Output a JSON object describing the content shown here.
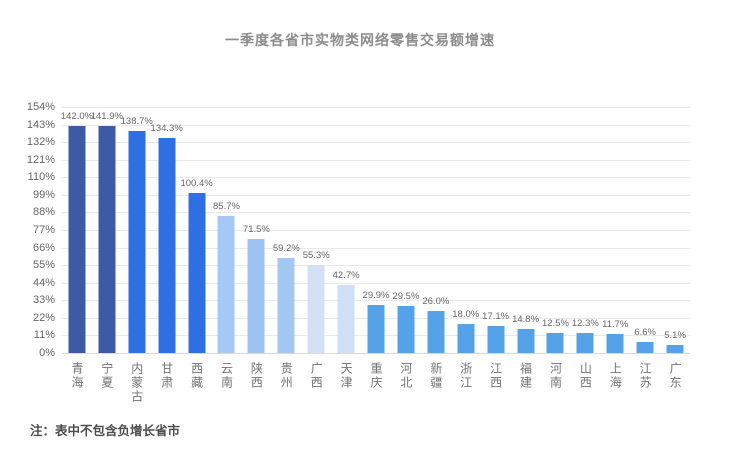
{
  "chart_data": {
    "type": "bar",
    "title": "一季度各省市实物类网络零售交易额增速",
    "footnote": "注：表中不包含负增长省市",
    "categories": [
      "青海",
      "宁夏",
      "内蒙古",
      "甘肃",
      "西藏",
      "云南",
      "陕西",
      "贵州",
      "广西",
      "天津",
      "重庆",
      "河北",
      "新疆",
      "浙江",
      "江西",
      "福建",
      "河南",
      "山西",
      "上海",
      "江苏",
      "广东"
    ],
    "values": [
      142.0,
      141.9,
      138.7,
      134.3,
      100.4,
      85.7,
      71.5,
      59.2,
      55.3,
      42.7,
      29.9,
      29.5,
      26.0,
      18.0,
      17.1,
      14.8,
      12.5,
      12.3,
      11.7,
      6.6,
      5.1
    ],
    "value_labels": [
      "142.0%",
      "141.9%",
      "138.7%",
      "134.3%",
      "100.4%",
      "85.7%",
      "71.5%",
      "59.2%",
      "55.3%",
      "42.7%",
      "29.9%",
      "29.5%",
      "26.0%",
      "18.0%",
      "17.1%",
      "14.8%",
      "12.5%",
      "12.3%",
      "11.7%",
      "6.6%",
      "5.1%"
    ],
    "bar_colors": [
      "#3d5ba4",
      "#3d5ba4",
      "#2f6fe4",
      "#2f6fe4",
      "#2f6fe4",
      "#a6c8f4",
      "#9dc3f2",
      "#a3c6f3",
      "#d2e1f8",
      "#cfdff8",
      "#55a2e8",
      "#55a2e8",
      "#55a2e8",
      "#55a2e8",
      "#55a2e8",
      "#55a2e8",
      "#55a2e8",
      "#55a2e8",
      "#55a2e8",
      "#55a2e8",
      "#55a2e8"
    ],
    "xlabel": "",
    "ylabel": "",
    "yticks": [
      "154%",
      "143%",
      "132%",
      "121%",
      "110%",
      "99%",
      "88%",
      "77%",
      "66%",
      "55%",
      "44%",
      "33%",
      "22%",
      "11%",
      "0%"
    ],
    "ylim": [
      0,
      154
    ],
    "ytick_step": 11,
    "grid": "horizontal",
    "legend_position": "none",
    "background_color": "#ffffff",
    "label_color": "#666666"
  }
}
